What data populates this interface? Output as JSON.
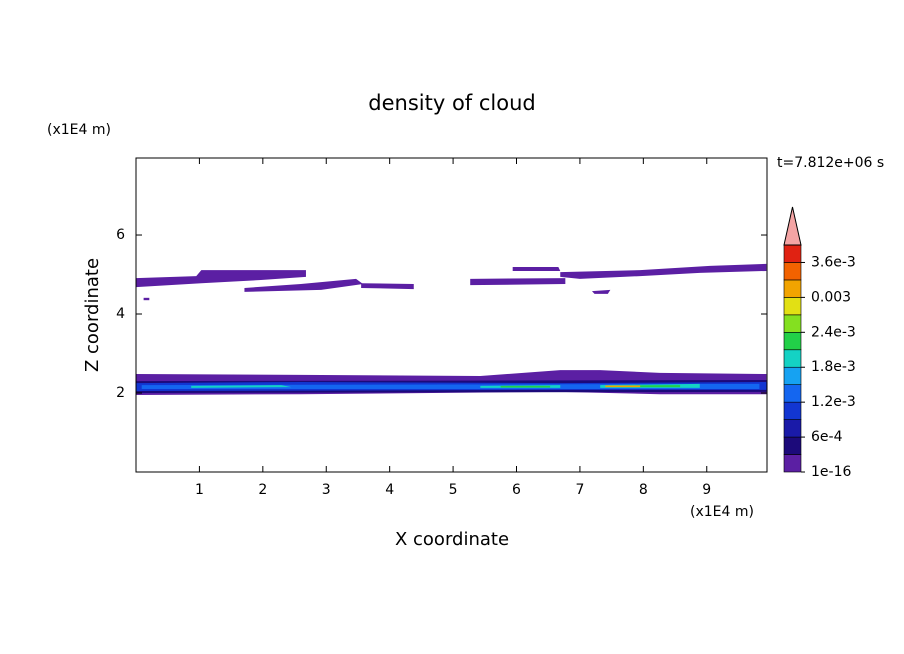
{
  "chart_data": {
    "type": "contour",
    "title": "density of cloud",
    "x_label": "X coordinate",
    "y_label": "Z coordinate",
    "x_unit": "(x1E4 m)",
    "y_unit": "(x1E4 m)",
    "time_label": "t=7.812e+06 s",
    "xlim": [
      0,
      9.95
    ],
    "ylim": [
      0,
      7.95
    ],
    "xticks": [
      1,
      2,
      3,
      4,
      5,
      6,
      7,
      8,
      9
    ],
    "yticks": [
      2,
      4,
      6
    ],
    "levels": [
      1e-16,
      0.0003,
      0.0006,
      0.0009,
      0.0012,
      0.0015,
      0.0018,
      0.0021,
      0.0024,
      0.0027,
      0.003,
      0.0033,
      0.0036,
      0.0039
    ],
    "colors": [
      "#5b1fa3",
      "#1c0a7a",
      "#1a1aa8",
      "#1236d2",
      "#1466f0",
      "#16a2f2",
      "#14d2c4",
      "#22d048",
      "#84e020",
      "#e2e014",
      "#f2a400",
      "#f26200",
      "#e02212"
    ],
    "extend_color": "#f4a4a4",
    "colorbar_ticks": [
      1e-16,
      {
        "value": 0.0006,
        "label": "6e-4"
      },
      {
        "value": 0.0012,
        "label": "1.2e-3"
      },
      {
        "value": 0.0018,
        "label": "1.8e-3"
      },
      {
        "value": 0.0024,
        "label": "2.4e-3"
      },
      0.003,
      {
        "value": 0.0036,
        "label": "3.6e-3"
      }
    ],
    "regions": [
      {
        "value": 1e-16,
        "x": [
          0,
          0.95,
          1.03,
          2.68,
          2.68,
          1.97,
          1.03,
          0
        ],
        "y": [
          4.91,
          4.96,
          5.11,
          5.11,
          4.94,
          4.86,
          4.78,
          4.68
        ]
      },
      {
        "value": 1e-16,
        "x": [
          1.71,
          2.6,
          3.47,
          3.58,
          2.92,
          1.71
        ],
        "y": [
          4.66,
          4.76,
          4.89,
          4.76,
          4.61,
          4.56
        ]
      },
      {
        "value": 1e-16,
        "x": [
          3.55,
          4.38,
          4.38,
          3.55
        ],
        "y": [
          4.78,
          4.76,
          4.63,
          4.66
        ]
      },
      {
        "value": 1e-16,
        "x": [
          5.27,
          6.77,
          6.77,
          5.27
        ],
        "y": [
          4.89,
          4.91,
          4.76,
          4.73
        ]
      },
      {
        "value": 1e-16,
        "x": [
          5.94,
          6.66,
          6.69,
          5.94
        ],
        "y": [
          5.19,
          5.19,
          5.09,
          5.09
        ]
      },
      {
        "value": 1e-16,
        "x": [
          6.69,
          7.95,
          9.05,
          9.94,
          9.94,
          8.89,
          7.95,
          7.0,
          6.69
        ],
        "y": [
          5.06,
          5.11,
          5.22,
          5.27,
          5.09,
          5.04,
          4.96,
          4.89,
          4.94
        ]
      },
      {
        "value": 1e-16,
        "x": [
          7.19,
          7.48,
          7.44,
          7.23
        ],
        "y": [
          4.58,
          4.61,
          4.51,
          4.51
        ]
      },
      {
        "value": 1e-16,
        "x": [
          0.12,
          0.21,
          0.21,
          0.12
        ],
        "y": [
          4.41,
          4.41,
          4.35,
          4.35
        ]
      },
      {
        "value": 1e-16,
        "x": [
          0,
          2.6,
          5.43,
          6.69,
          7.32,
          8.26,
          9.94,
          9.94,
          8.26,
          6.69,
          2.6,
          0
        ],
        "y": [
          2.48,
          2.46,
          2.43,
          2.58,
          2.58,
          2.51,
          2.48,
          1.97,
          1.97,
          2.03,
          1.97,
          1.95
        ]
      },
      {
        "value": 0.0003,
        "x": [
          0,
          9.94,
          9.94,
          0
        ],
        "y": [
          2.3,
          2.33,
          2.03,
          2.0
        ]
      },
      {
        "value": 0.0009,
        "x": [
          0,
          2.6,
          6.69,
          9.94,
          9.94,
          6.69,
          0
        ],
        "y": [
          2.25,
          2.28,
          2.25,
          2.28,
          2.08,
          2.08,
          2.05
        ]
      },
      {
        "value": 0.0012,
        "x": [
          0.09,
          9.83,
          9.83,
          0.09
        ],
        "y": [
          2.2,
          2.23,
          2.1,
          2.1
        ]
      },
      {
        "value": 0.0018,
        "x": [
          0.87,
          2.29,
          2.45,
          0.87
        ],
        "y": [
          2.18,
          2.2,
          2.15,
          2.13
        ]
      },
      {
        "value": 0.0018,
        "x": [
          5.43,
          6.69,
          6.69,
          5.43
        ],
        "y": [
          2.18,
          2.2,
          2.13,
          2.13
        ]
      },
      {
        "value": 0.0018,
        "x": [
          7.32,
          8.89,
          8.89,
          7.32
        ],
        "y": [
          2.2,
          2.23,
          2.13,
          2.13
        ]
      },
      {
        "value": 0.0021,
        "x": [
          5.75,
          6.53,
          6.53,
          5.75
        ],
        "y": [
          2.18,
          2.18,
          2.14,
          2.14
        ]
      },
      {
        "value": 0.0021,
        "x": [
          7.63,
          8.58,
          8.58,
          7.63
        ],
        "y": [
          2.19,
          2.2,
          2.15,
          2.15
        ]
      },
      {
        "value": 0.003,
        "x": [
          7.4,
          7.95,
          7.95,
          7.4
        ],
        "y": [
          2.19,
          2.19,
          2.15,
          2.15
        ]
      }
    ]
  }
}
